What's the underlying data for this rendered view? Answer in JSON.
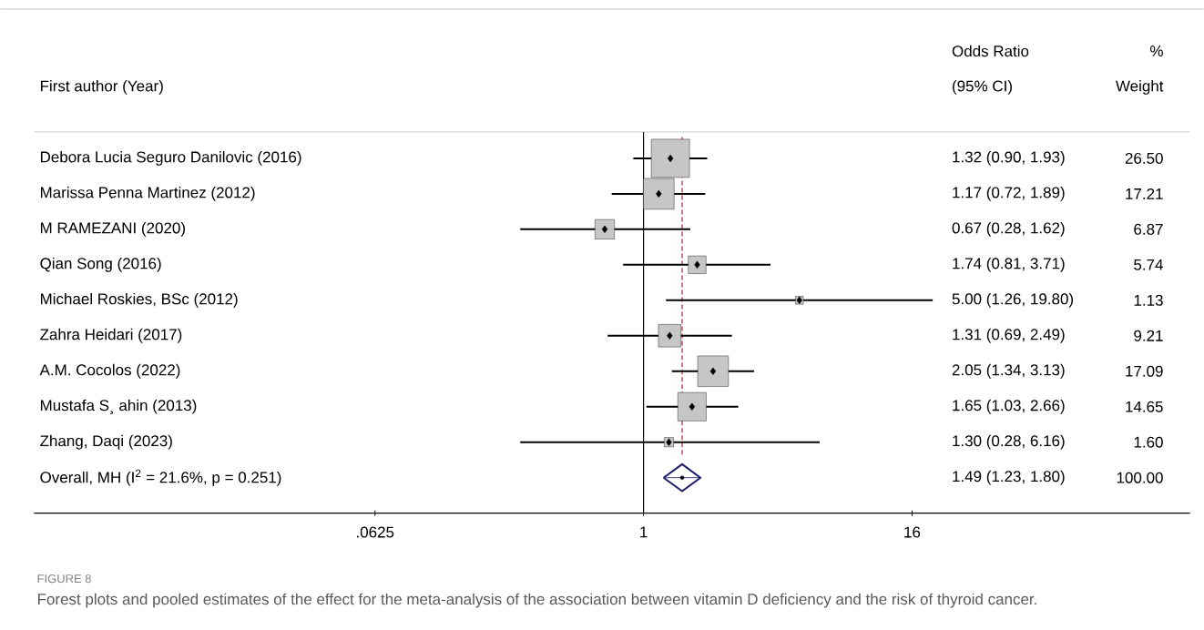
{
  "chart_data": [
    {
      "type": "scatter",
      "orientation": "horizontal",
      "log": "x",
      "ylabel": "First author (Year)",
      "categories": [
        "Debora Lucia Seguro Danilovic (2016)",
        "Marissa Penna Martinez (2012)",
        "M RAMEZANI (2020)",
        "Qian Song (2016)",
        "Michael Roskies, BSc (2012)",
        "Zahra Heidari (2017)",
        "A.M. Cocolos (2022)",
        "Mustafa S¸ ahin (2013)",
        "Zhang, Daqi (2023)",
        "Overall, MH (I$^{2}$ = 21.6%, p = 0.251)"
      ],
      "series": [
        {
          "type": "bubble",
          "color": "#c6c6c6",
          "marker": "square",
          "values": [
            1.32,
            1.17,
            0.67,
            1.74,
            5.0,
            1.31,
            2.05,
            1.65,
            1.3,
            null
          ],
          "sizes": [
            1,
            0.6494,
            0.2592,
            0.2166,
            0.0426,
            0.3475,
            0.6449,
            0.5528,
            0.0604,
            null
          ]
        },
        {
          "color": "#000000",
          "marker": "diamond",
          "values": [
            1.32,
            1.17,
            0.67,
            1.74,
            5.0,
            1.31,
            2.05,
            1.65,
            1.3,
            null
          ],
          "errors": [
            [
              0.9,
              1.93
            ],
            [
              0.72,
              1.89
            ],
            [
              0.28,
              1.62
            ],
            [
              0.81,
              3.71
            ],
            [
              1.26,
              19.8
            ],
            [
              0.69,
              2.49
            ],
            [
              1.34,
              3.13
            ],
            [
              1.03,
              2.66
            ],
            [
              0.28,
              6.16
            ],
            null
          ]
        },
        {
          "color": "#1a1a6e",
          "marker": "diamond",
          "values": [
            null,
            null,
            null,
            null,
            null,
            null,
            null,
            null,
            null,
            1.49
          ],
          "errors": [
            null,
            null,
            null,
            null,
            null,
            null,
            null,
            null,
            null,
            [
              1.23,
              1.8
            ]
          ]
        }
      ],
      "xlim": [
        0.00185,
        282
      ],
      "xticks": [
        {
          "value": 0.0625,
          "label": ".0625"
        },
        1,
        16
      ],
      "ref_lines": [
        {
          "axis": "x",
          "value": 1,
          "color": "#000000",
          "line_style": "solid"
        },
        {
          "axis": "x",
          "value": 1.49,
          "color": "#b22222",
          "line_style": "dashed"
        }
      ],
      "annotations": [
        "FIGURE 8",
        "Forest plots and pooled estimates of the effect for the meta-analysis of the association between vitamin D deficiency and the risk of thyroid cancer."
      ]
    },
    {
      "type": "other",
      "annotations": [
        "Odds Ratio",
        "(95% CI)",
        "%",
        "Weight",
        "1.32 (0.90, 1.93)",
        "1.17 (0.72, 1.89)",
        "0.67 (0.28, 1.62)",
        "1.74 (0.81, 3.71)",
        "5.00 (1.26, 19.80)",
        "1.31 (0.69, 2.49)",
        "2.05 (1.34, 3.13)",
        "1.65 (1.03, 2.66)",
        "1.30 (0.28, 6.16)",
        "1.49 (1.23, 1.80)",
        "26.50",
        "17.21",
        "6.87",
        "5.74",
        "1.13",
        "9.21",
        "17.09",
        "14.65",
        "1.60",
        "100.00"
      ]
    }
  ]
}
